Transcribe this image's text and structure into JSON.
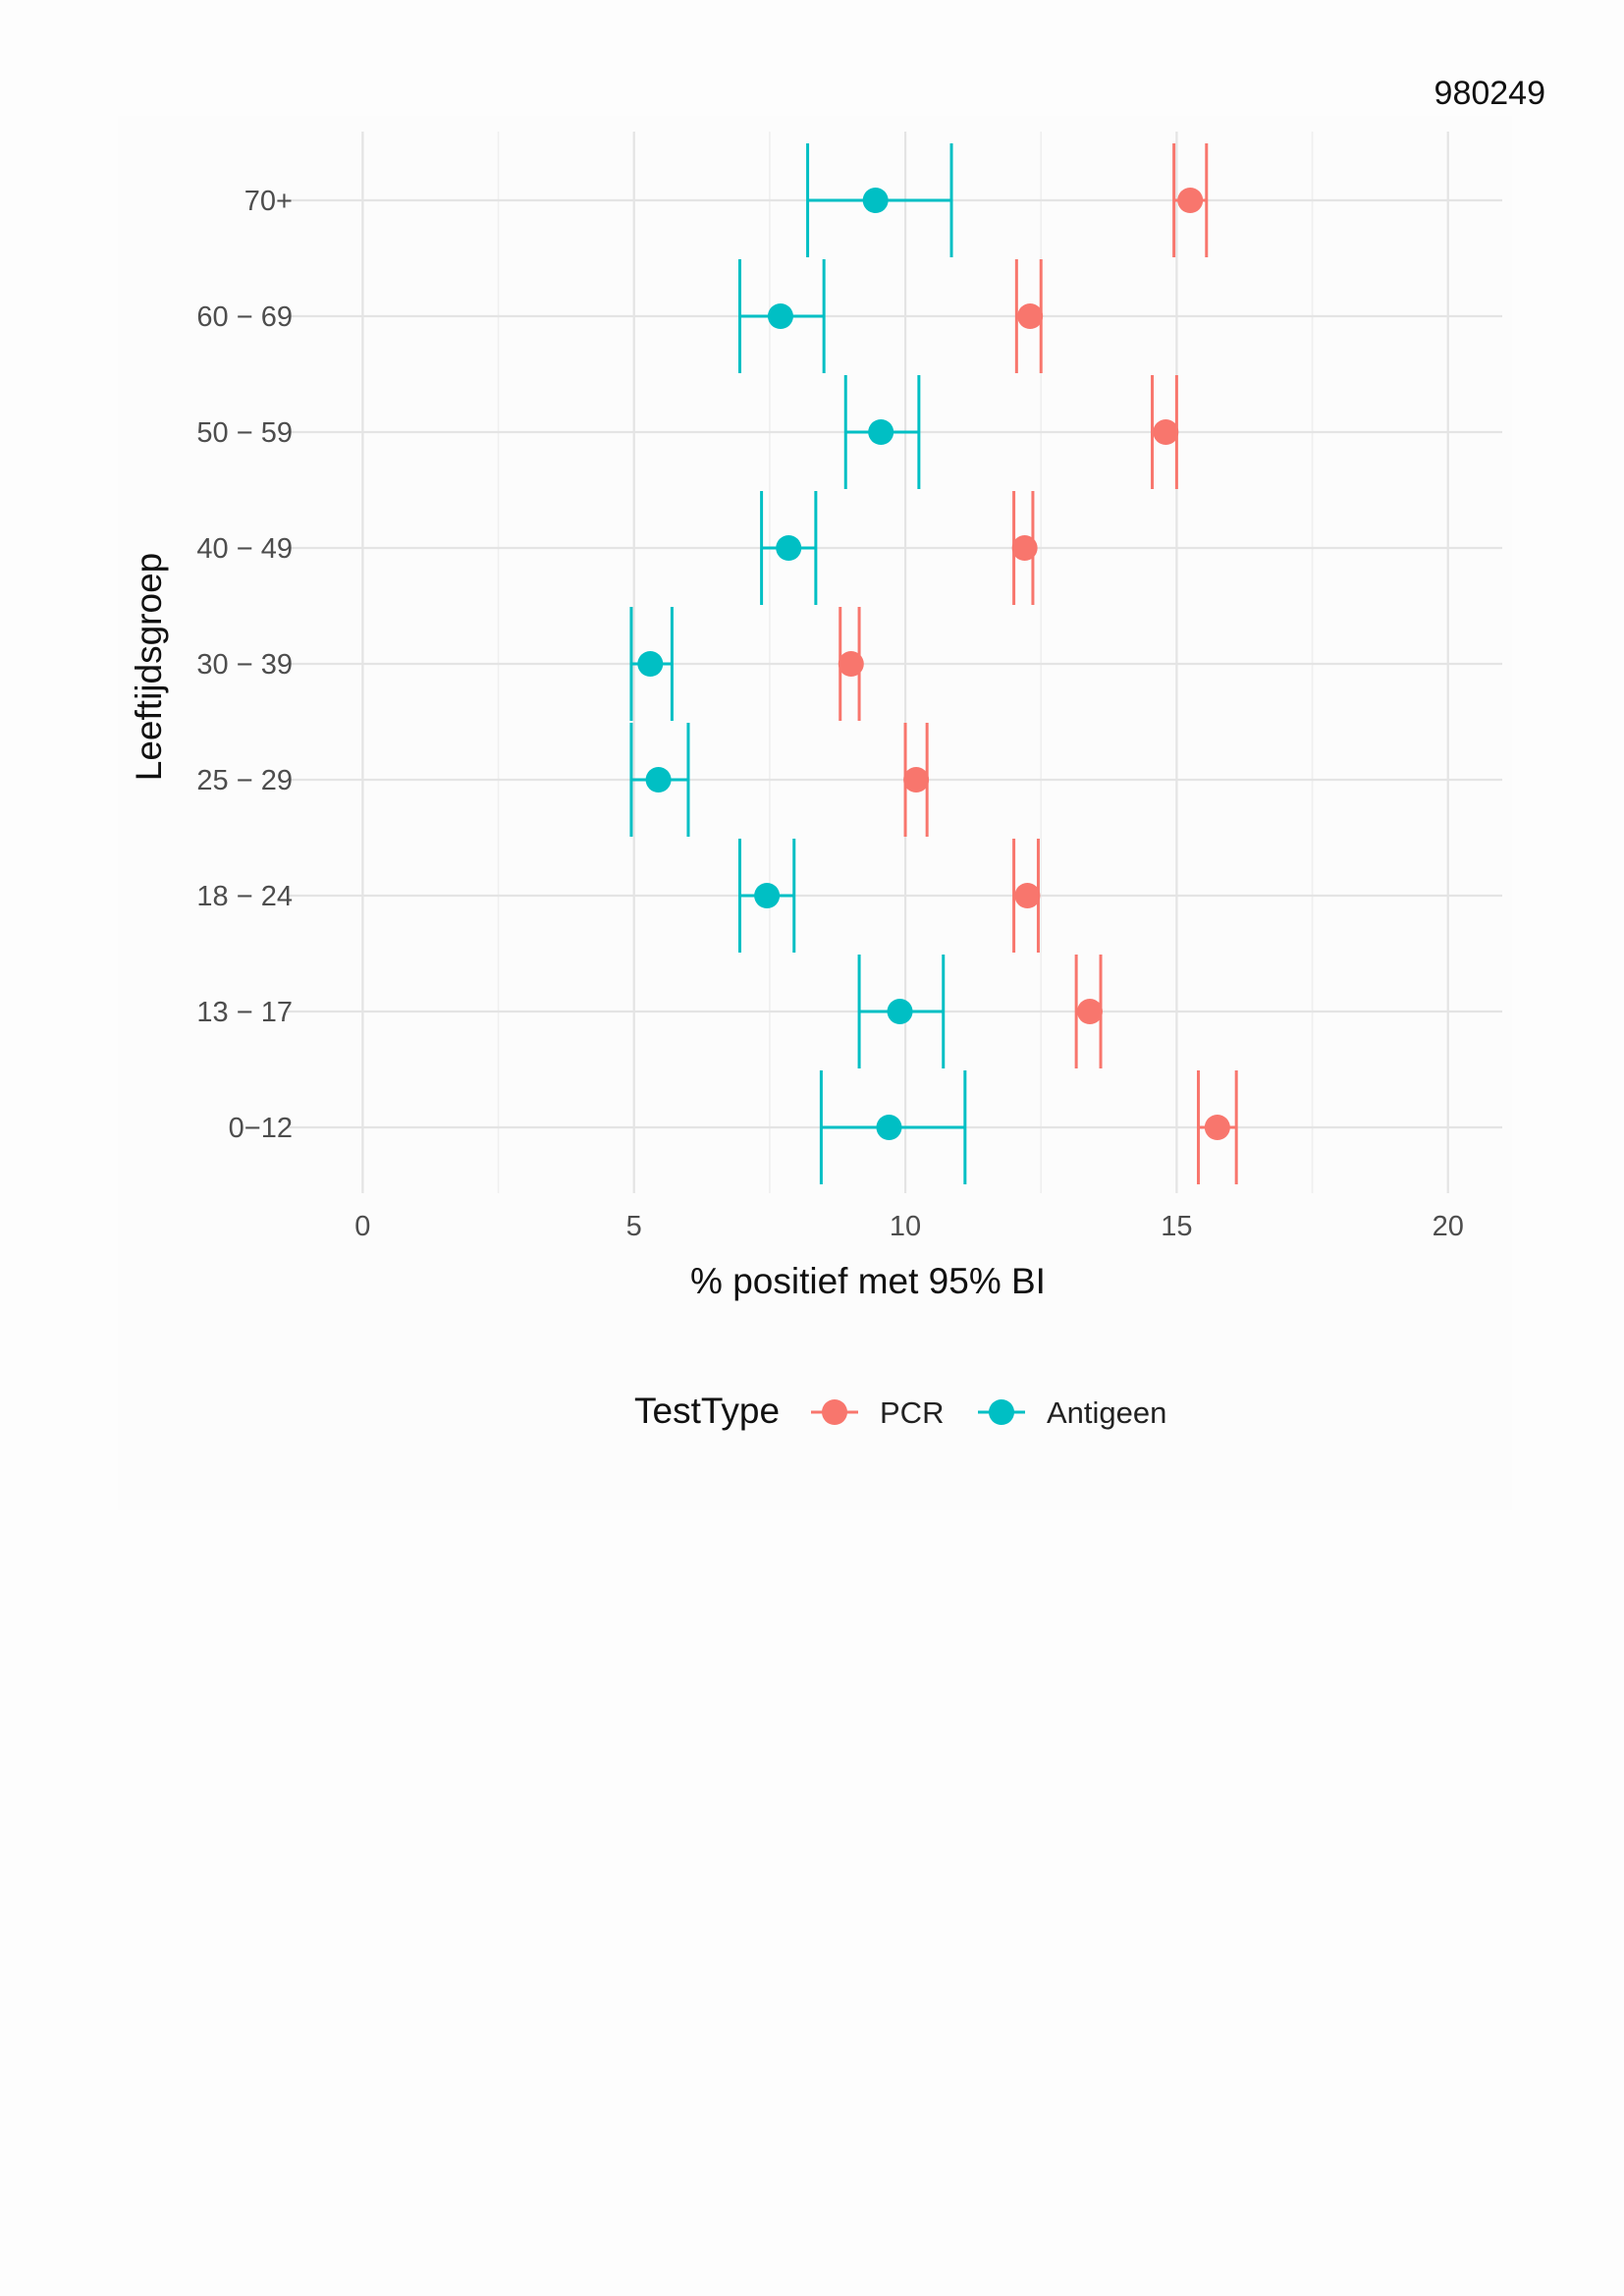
{
  "document": {
    "id": "980249"
  },
  "chart_data": {
    "type": "errorbar",
    "title": "",
    "xlabel": "% positief met 95% BI",
    "ylabel": "Leeftijdsgroep",
    "xlim": [
      -1.4,
      21
    ],
    "x_ticks": [
      0,
      5,
      10,
      15,
      20
    ],
    "x_tick_labels": [
      "0",
      "5",
      "10",
      "15",
      "20"
    ],
    "categories": [
      "70+",
      "60 − 69",
      "50 − 59",
      "40 − 49",
      "30 − 39",
      "25 − 29",
      "18 − 24",
      "13 − 17",
      "0−12"
    ],
    "grid": true,
    "legend": {
      "title": "TestType",
      "position": "bottom"
    },
    "series": [
      {
        "name": "PCR",
        "color": "#f8766d",
        "values": [
          15.25,
          12.3,
          14.8,
          12.2,
          9.0,
          10.2,
          12.25,
          13.4,
          15.75
        ],
        "lower": [
          14.95,
          12.05,
          14.55,
          12.0,
          8.8,
          10.0,
          12.0,
          13.15,
          15.4
        ],
        "upper": [
          15.55,
          12.5,
          15.0,
          12.35,
          9.15,
          10.4,
          12.45,
          13.6,
          16.1
        ]
      },
      {
        "name": "Antigeen",
        "color": "#00bfc4",
        "values": [
          9.45,
          7.7,
          9.55,
          7.85,
          5.3,
          5.45,
          7.45,
          9.9,
          9.7
        ],
        "lower": [
          8.2,
          6.95,
          8.9,
          7.35,
          4.95,
          4.95,
          6.95,
          9.15,
          8.45
        ],
        "upper": [
          10.85,
          8.5,
          10.25,
          8.35,
          5.7,
          6.0,
          7.95,
          10.7,
          11.1
        ]
      }
    ]
  }
}
